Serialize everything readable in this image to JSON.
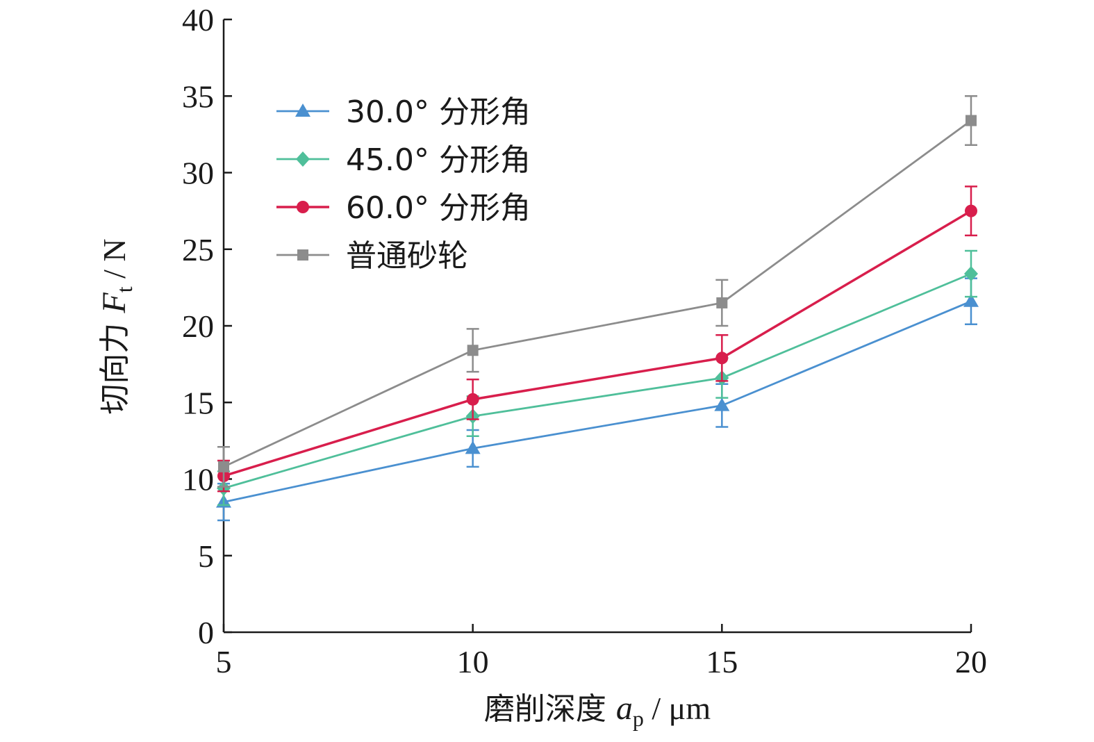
{
  "chart_data": {
    "type": "line",
    "xlabel": {
      "main": "磨削深度 ",
      "symbol": "a",
      "subscript": "p",
      "unit": " / μm"
    },
    "ylabel": {
      "main": "切向力 ",
      "symbol": "F",
      "subscript": "t",
      "unit": " / N"
    },
    "x": [
      5,
      10,
      15,
      20
    ],
    "x_ticks": [
      "5",
      "10",
      "15",
      "20"
    ],
    "xlim": [
      5,
      20
    ],
    "ylim": [
      0,
      40
    ],
    "y_ticks": [
      "0",
      "5",
      "10",
      "15",
      "20",
      "25",
      "30",
      "35",
      "40"
    ],
    "grid": false,
    "legend_position": "top-left",
    "series": [
      {
        "name": "30.0° 分形角",
        "marker": "triangle",
        "color": "#4a90d0",
        "values": [
          8.5,
          12.0,
          14.8,
          21.6
        ],
        "errors": [
          1.2,
          1.2,
          1.4,
          1.5
        ]
      },
      {
        "name": "45.0° 分形角",
        "marker": "diamond",
        "color": "#4fbf9a",
        "values": [
          9.4,
          14.1,
          16.6,
          23.4
        ],
        "errors": [
          1.1,
          1.3,
          1.3,
          1.5
        ]
      },
      {
        "name": "60.0° 分形角",
        "marker": "circle",
        "color": "#d81e4c",
        "values": [
          10.2,
          15.2,
          17.9,
          27.5
        ],
        "errors": [
          1.0,
          1.3,
          1.5,
          1.6
        ]
      },
      {
        "name": "普通砂轮",
        "marker": "square",
        "color": "#8c8c8c",
        "values": [
          10.8,
          18.4,
          21.5,
          33.4
        ],
        "errors": [
          1.3,
          1.4,
          1.5,
          1.6
        ]
      }
    ]
  }
}
